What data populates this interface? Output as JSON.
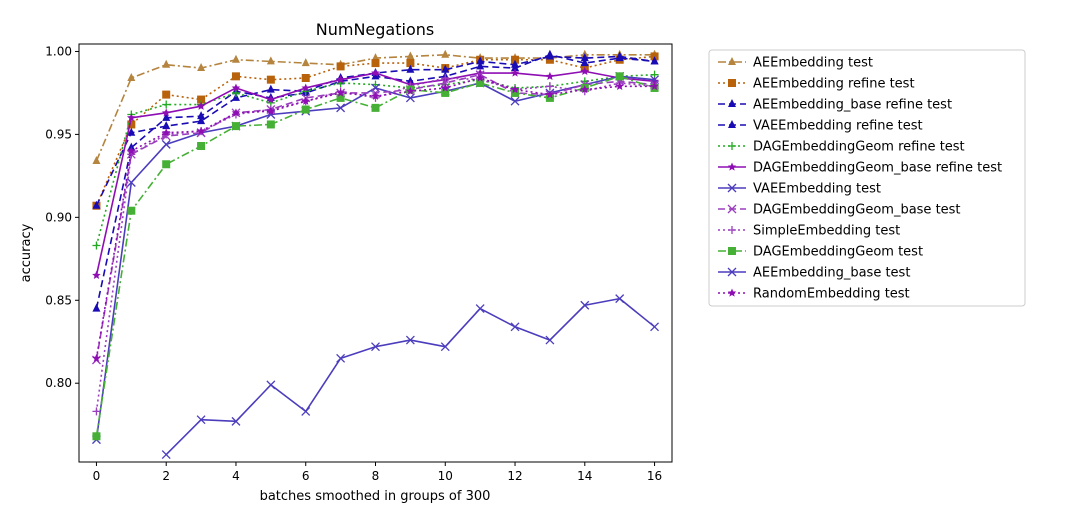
{
  "chart_data": {
    "type": "line",
    "title": "NumNegations",
    "xlabel": "batches smoothed in groups of 300",
    "ylabel": "accuracy",
    "xlim": [
      -0.5,
      16.5
    ],
    "ylim": [
      0.7525,
      1.0045
    ],
    "x_ticks": [
      0,
      2,
      4,
      6,
      8,
      10,
      12,
      14,
      16
    ],
    "y_ticks": [
      0.8,
      0.85,
      0.9,
      0.95,
      1.0
    ],
    "y_tick_labels": [
      "0.80",
      "0.85",
      "0.90",
      "0.95",
      "1.00"
    ],
    "grid": false,
    "legend_position": "outside right",
    "x": [
      0,
      1,
      2,
      3,
      4,
      5,
      6,
      7,
      8,
      9,
      10,
      11,
      12,
      13,
      14,
      15,
      16
    ],
    "series": [
      {
        "name": "AEEmbedding test",
        "color": "#b5843e",
        "dash": "8,3,2,3",
        "marker": "triangle",
        "values": [
          0.934,
          0.984,
          0.992,
          0.99,
          0.995,
          0.994,
          0.993,
          0.992,
          0.996,
          0.997,
          0.998,
          0.996,
          0.996,
          0.996,
          0.998,
          0.998,
          0.998
        ]
      },
      {
        "name": "AEEmbedding refine test",
        "color": "#b8620b",
        "dash": "2,3",
        "marker": "square",
        "values": [
          0.907,
          0.956,
          0.974,
          0.971,
          0.985,
          0.983,
          0.984,
          0.991,
          0.993,
          0.993,
          0.99,
          0.995,
          0.995,
          0.995,
          0.99,
          0.995,
          0.997
        ]
      },
      {
        "name": "AEEmbedding_base refine test",
        "color": "#1a0cb4",
        "dash": "7,4",
        "marker": "triangle",
        "values": [
          0.845,
          0.942,
          0.96,
          0.961,
          0.976,
          0.972,
          0.975,
          0.982,
          0.985,
          0.982,
          0.985,
          0.991,
          0.99,
          0.998,
          0.993,
          0.996,
          0.994
        ]
      },
      {
        "name": "VAEEmbedding refine test",
        "color": "#1a0cb4",
        "dash": "7,4",
        "marker": "triangle",
        "values": [
          0.907,
          0.951,
          0.955,
          0.958,
          0.972,
          0.977,
          0.976,
          0.984,
          0.987,
          0.989,
          0.989,
          0.994,
          0.992,
          0.997,
          0.996,
          0.997,
          0.994
        ]
      },
      {
        "name": "DAGEmbeddingGeom refine test",
        "color": "#22aa22",
        "dash": "2,3",
        "marker": "plus",
        "values": [
          0.883,
          0.962,
          0.968,
          0.968,
          0.975,
          0.969,
          0.976,
          0.981,
          0.98,
          0.978,
          0.98,
          0.983,
          0.978,
          0.979,
          0.982,
          0.985,
          0.986
        ]
      },
      {
        "name": "DAGEmbeddingGeom_base refine test",
        "color": "#8e0eb4",
        "dash": "",
        "marker": "star",
        "values": [
          0.865,
          0.96,
          0.963,
          0.967,
          0.978,
          0.971,
          0.978,
          0.983,
          0.987,
          0.98,
          0.983,
          0.987,
          0.987,
          0.985,
          0.988,
          0.984,
          0.982
        ]
      },
      {
        "name": "VAEEmbedding test",
        "color": "#4b3dbd",
        "dash": "",
        "marker": "x",
        "values": [
          0.766,
          0.921,
          0.944,
          0.951,
          0.955,
          0.962,
          0.964,
          0.966,
          0.978,
          0.972,
          0.976,
          0.981,
          0.97,
          0.975,
          0.98,
          0.985,
          0.983
        ]
      },
      {
        "name": "DAGEmbeddingGeom_base test",
        "color": "#9b3fbf",
        "dash": "7,4",
        "marker": "x",
        "values": [
          0.814,
          0.938,
          0.949,
          0.951,
          0.963,
          0.965,
          0.972,
          0.975,
          0.975,
          0.977,
          0.981,
          0.986,
          0.975,
          0.974,
          0.98,
          0.982,
          0.98
        ]
      },
      {
        "name": "SimpleEmbedding test",
        "color": "#9b3fbf",
        "dash": "2,3",
        "marker": "plus",
        "values": [
          0.783,
          0.938,
          0.95,
          0.952,
          0.962,
          0.965,
          0.97,
          0.976,
          0.972,
          0.979,
          0.984,
          0.983,
          0.977,
          0.979,
          0.976,
          0.981,
          0.979
        ]
      },
      {
        "name": "DAGEmbeddingGeom test",
        "color": "#45b035",
        "dash": "8,3,2,3",
        "marker": "square",
        "values": [
          0.768,
          0.904,
          0.932,
          0.943,
          0.955,
          0.956,
          0.965,
          0.972,
          0.966,
          0.977,
          0.975,
          0.981,
          0.975,
          0.972,
          0.978,
          0.985,
          0.978
        ]
      },
      {
        "name": "AEEmbedding_base test",
        "color": "#4b3dbd",
        "dash": "",
        "marker": "x",
        "values": [
          null,
          null,
          0.757,
          0.778,
          0.777,
          0.799,
          0.783,
          0.815,
          0.822,
          0.826,
          0.822,
          0.845,
          0.834,
          0.826,
          0.847,
          0.851,
          0.834
        ]
      },
      {
        "name": "RandomEmbedding test",
        "color": "#8e0eb4",
        "dash": "2,3",
        "marker": "star",
        "values": [
          0.815,
          0.94,
          0.951,
          0.952,
          0.963,
          0.964,
          0.97,
          0.975,
          0.973,
          0.976,
          0.978,
          0.984,
          0.977,
          0.974,
          0.977,
          0.979,
          0.979
        ]
      }
    ]
  }
}
